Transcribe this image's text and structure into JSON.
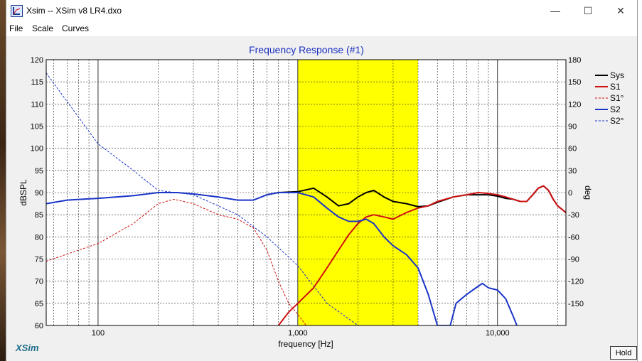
{
  "window": {
    "title": "Xsim -- XSim v8 LR4.dxo",
    "minimize_glyph": "—",
    "maximize_glyph": "☐",
    "close_glyph": "✕"
  },
  "menu": [
    "File",
    "Scale",
    "Curves"
  ],
  "brand": "XSim",
  "hold_button": "Hold",
  "chart_data": {
    "type": "line",
    "title": "Frequency Response (#1)",
    "xlabel": "frequency [Hz]",
    "ylabel": "dBSPL",
    "y2label": "deg",
    "xscale": "log",
    "xlim": [
      55,
      22000
    ],
    "ylim": [
      60,
      120
    ],
    "y2lim": [
      -180,
      180
    ],
    "x_ticks": [
      {
        "v": 100,
        "label": "100"
      },
      {
        "v": 1000,
        "label": "1,000"
      },
      {
        "v": 10000,
        "label": "10,000"
      }
    ],
    "y_ticks": [
      60,
      65,
      70,
      75,
      80,
      85,
      90,
      95,
      100,
      105,
      110,
      115,
      120
    ],
    "y2_ticks": [
      -150,
      -120,
      -90,
      -60,
      -30,
      0,
      30,
      60,
      90,
      120,
      150,
      180
    ],
    "highlight_band": [
      1000,
      4000
    ],
    "highlight_color": "#ffff00",
    "legend_position": "right",
    "series": [
      {
        "name": "Sys",
        "color": "#000000",
        "width": 2,
        "dash": "",
        "axis": "left",
        "points": [
          [
            700,
            89.5
          ],
          [
            800,
            90
          ],
          [
            1000,
            90.2
          ],
          [
            1200,
            91
          ],
          [
            1400,
            89
          ],
          [
            1600,
            87
          ],
          [
            1800,
            87.5
          ],
          [
            2000,
            89
          ],
          [
            2200,
            90
          ],
          [
            2400,
            90.5
          ],
          [
            2700,
            89
          ],
          [
            3000,
            88
          ],
          [
            3500,
            87.5
          ],
          [
            4000,
            86.8
          ],
          [
            4500,
            87
          ],
          [
            5000,
            87.8
          ],
          [
            6000,
            89
          ],
          [
            7000,
            89.5
          ],
          [
            8000,
            89.5
          ],
          [
            9000,
            89.5
          ],
          [
            10000,
            89.2
          ],
          [
            11000,
            88.7
          ],
          [
            12000,
            88.5
          ],
          [
            13000,
            88
          ],
          [
            14000,
            88
          ],
          [
            15000,
            89.5
          ],
          [
            16000,
            91
          ],
          [
            17000,
            91.5
          ],
          [
            18000,
            90.5
          ],
          [
            19000,
            88.5
          ],
          [
            20000,
            87
          ],
          [
            22000,
            85.5
          ]
        ]
      },
      {
        "name": "S1",
        "color": "#d01010",
        "width": 2,
        "dash": "",
        "axis": "left",
        "points": [
          [
            800,
            60
          ],
          [
            900,
            63
          ],
          [
            1000,
            65
          ],
          [
            1200,
            68.5
          ],
          [
            1400,
            73
          ],
          [
            1600,
            77
          ],
          [
            1800,
            80.5
          ],
          [
            2000,
            83
          ],
          [
            2200,
            84.5
          ],
          [
            2400,
            85
          ],
          [
            2700,
            84.5
          ],
          [
            3000,
            84
          ],
          [
            3500,
            85.5
          ],
          [
            4000,
            86.5
          ],
          [
            4500,
            87
          ],
          [
            5000,
            88
          ],
          [
            6000,
            89
          ],
          [
            7000,
            89.5
          ],
          [
            8000,
            90
          ],
          [
            9000,
            89.8
          ],
          [
            10000,
            89.5
          ],
          [
            11000,
            89
          ],
          [
            12000,
            88.5
          ],
          [
            13000,
            88
          ],
          [
            14000,
            88
          ],
          [
            15000,
            89.5
          ],
          [
            16000,
            91
          ],
          [
            17000,
            91.5
          ],
          [
            18000,
            90.5
          ],
          [
            19000,
            88.5
          ],
          [
            20000,
            87
          ],
          [
            22000,
            85.5
          ]
        ]
      },
      {
        "name": "S1°",
        "color": "#d01010",
        "width": 1,
        "dash": "3,2",
        "axis": "right",
        "points": [
          [
            55,
            -93
          ],
          [
            100,
            -69
          ],
          [
            150,
            -42
          ],
          [
            200,
            -15
          ],
          [
            240,
            -9
          ],
          [
            300,
            -15
          ],
          [
            400,
            -30
          ],
          [
            500,
            -36
          ],
          [
            600,
            -48
          ],
          [
            700,
            -78
          ],
          [
            800,
            -120
          ],
          [
            900,
            -150
          ],
          [
            1000,
            -165
          ],
          [
            1100,
            -180
          ]
        ]
      },
      {
        "name": "S2",
        "color": "#1a35c8",
        "width": 2,
        "dash": "",
        "axis": "left",
        "points": [
          [
            55,
            87.5
          ],
          [
            70,
            88.3
          ],
          [
            100,
            88.7
          ],
          [
            150,
            89.3
          ],
          [
            200,
            90
          ],
          [
            250,
            90
          ],
          [
            300,
            89.7
          ],
          [
            400,
            89
          ],
          [
            500,
            88.3
          ],
          [
            600,
            88.3
          ],
          [
            700,
            89.5
          ],
          [
            800,
            90
          ],
          [
            1000,
            90
          ],
          [
            1200,
            89
          ],
          [
            1400,
            86.5
          ],
          [
            1600,
            84.5
          ],
          [
            1800,
            83.5
          ],
          [
            2000,
            83.5
          ],
          [
            2200,
            84
          ],
          [
            2400,
            83
          ],
          [
            2700,
            80
          ],
          [
            3000,
            78
          ],
          [
            3500,
            76
          ],
          [
            4000,
            73
          ],
          [
            4500,
            67
          ],
          [
            5000,
            60
          ],
          [
            5800,
            60
          ],
          [
            6200,
            65
          ],
          [
            7000,
            67
          ],
          [
            7800,
            68.5
          ],
          [
            8400,
            69.5
          ],
          [
            9000,
            68.5
          ],
          [
            10000,
            68
          ],
          [
            11000,
            66
          ],
          [
            12000,
            62
          ],
          [
            12500,
            60
          ]
        ]
      },
      {
        "name": "S2°",
        "color": "#1a35c8",
        "width": 1,
        "dash": "3,2",
        "axis": "right",
        "points": [
          [
            55,
            162
          ],
          [
            100,
            66
          ],
          [
            150,
            30
          ],
          [
            200,
            3
          ],
          [
            300,
            -3
          ],
          [
            400,
            -18
          ],
          [
            500,
            -30
          ],
          [
            700,
            -60
          ],
          [
            1000,
            -99
          ],
          [
            1400,
            -150
          ],
          [
            2000,
            -180
          ]
        ]
      }
    ]
  }
}
